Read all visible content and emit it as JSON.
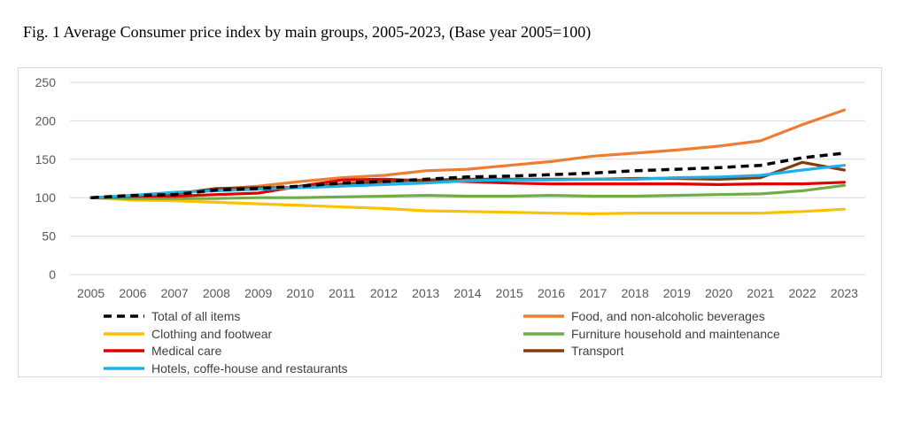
{
  "figure_title": "Fig. 1 Average Consumer price index by main groups, 2005-2023, (Base year 2005=100)",
  "chart_data": {
    "type": "line",
    "title": "",
    "xlabel": "",
    "ylabel": "",
    "ylim": [
      0,
      250
    ],
    "yticks": [
      "0",
      "50",
      "100",
      "150",
      "200",
      "250"
    ],
    "grid": "horizontal",
    "legend_position": "bottom",
    "categories": [
      "2005",
      "2006",
      "2007",
      "2008",
      "2009",
      "2010",
      "2011",
      "2012",
      "2013",
      "2014",
      "2015",
      "2016",
      "2017",
      "2018",
      "2019",
      "2020",
      "2021",
      "2022",
      "2023"
    ],
    "series": [
      {
        "name": "Total of all items",
        "color": "#000000",
        "dashed": true,
        "values": [
          100,
          103,
          104,
          110,
          112,
          115,
          119,
          121,
          124,
          127,
          128,
          130,
          132,
          135,
          137,
          139,
          142,
          152,
          158
        ]
      },
      {
        "name": "Food, and non-alcoholic beverages",
        "color": "#ed7d31",
        "dashed": false,
        "values": [
          100,
          102,
          106,
          111,
          115,
          121,
          126,
          129,
          135,
          137,
          142,
          147,
          154,
          158,
          162,
          167,
          174,
          195,
          214
        ]
      },
      {
        "name": "Clothing and footwear",
        "color": "#ffc000",
        "dashed": false,
        "values": [
          100,
          97,
          96,
          94,
          92,
          90,
          88,
          86,
          83,
          82,
          81,
          80,
          79,
          80,
          80,
          80,
          80,
          82,
          85
        ]
      },
      {
        "name": "Furniture household and maintenance",
        "color": "#70ad47",
        "dashed": false,
        "values": [
          100,
          99,
          99,
          99,
          100,
          100,
          101,
          102,
          103,
          102,
          102,
          103,
          102,
          102,
          103,
          104,
          105,
          109,
          116
        ]
      },
      {
        "name": "Medical care",
        "color": "#e00000",
        "dashed": false,
        "values": [
          100,
          102,
          102,
          104,
          106,
          115,
          123,
          124,
          122,
          121,
          119,
          118,
          118,
          118,
          118,
          117,
          118,
          118,
          120
        ]
      },
      {
        "name": "Transport",
        "color": "#843c0c",
        "dashed": false,
        "values": [
          100,
          102,
          105,
          112,
          113,
          113,
          118,
          121,
          123,
          124,
          124,
          124,
          124,
          125,
          125,
          124,
          126,
          146,
          136
        ]
      },
      {
        "name": "Hotels, coffe-house and restaurants",
        "color": "#1eb0e8",
        "dashed": false,
        "values": [
          100,
          103,
          107,
          109,
          111,
          113,
          115,
          117,
          119,
          122,
          123,
          123,
          124,
          124,
          126,
          127,
          129,
          136,
          142
        ]
      }
    ]
  }
}
